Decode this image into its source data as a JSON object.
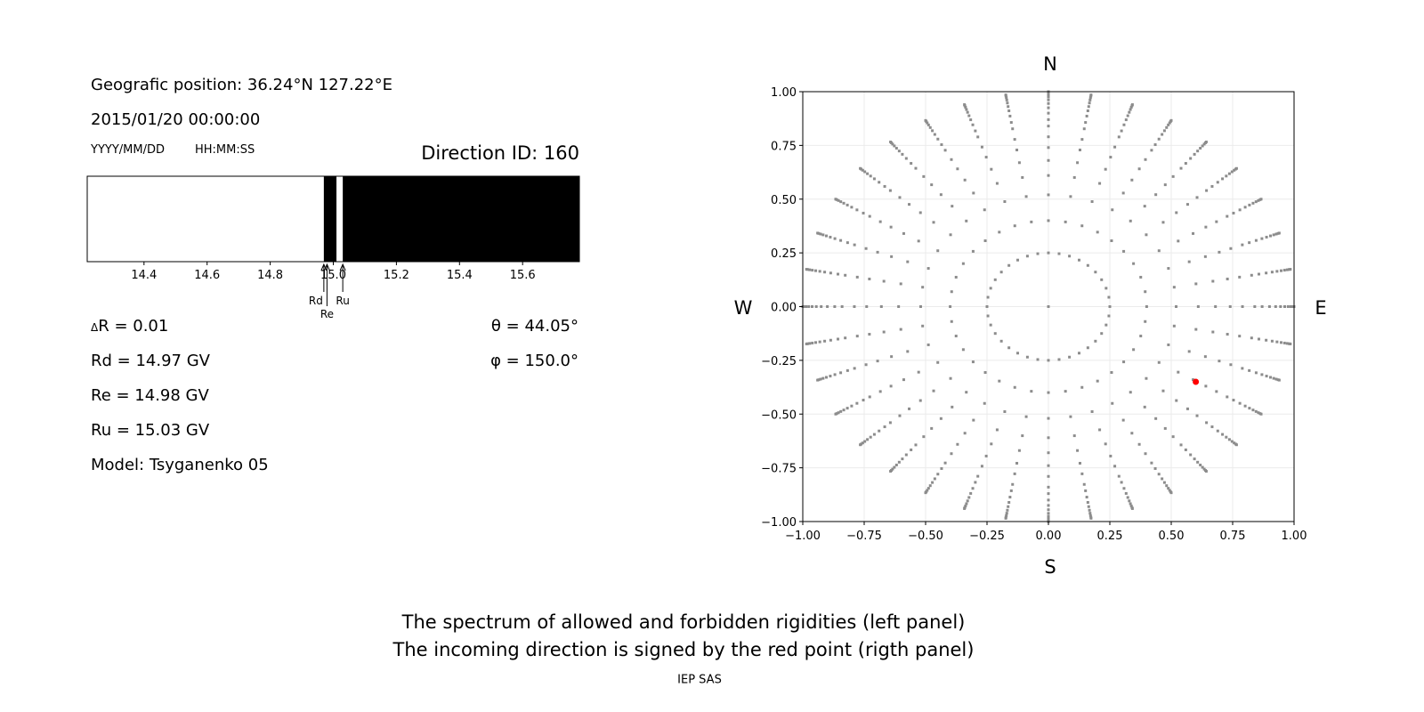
{
  "info": {
    "geo_position": "Geografic position: 36.24°N 127.22°E",
    "datetime": "2015/01/20 00:00:00",
    "date_format": "YYYY/MM/DD",
    "time_format": "HH:MM:SS",
    "direction_id": "Direction ID: 160",
    "delta_r_symbol": "Δ",
    "delta_r": "R = 0.01",
    "rd": "Rd = 14.97 GV",
    "re": "Re = 14.98 GV",
    "ru": "Ru = 15.03 GV",
    "model": "Model: Tsyganenko 05",
    "theta": "θ = 44.05°",
    "phi": "φ = 150.0°"
  },
  "compass": {
    "n": "N",
    "s": "S",
    "w": "W",
    "e": "E"
  },
  "caption": {
    "line1": "The spectrum of allowed and forbidden rigidities (left panel)",
    "line2": "The incoming direction is signed by the red point (rigth panel)",
    "credit": "IEP SAS"
  },
  "chart_data": [
    {
      "type": "bar",
      "description_of_marks": "rigidity spectrum; black = forbidden, white = allowed",
      "xlim": [
        14.22,
        15.78
      ],
      "xticks": [
        "14.4",
        "14.6",
        "14.8",
        "15.0",
        "15.2",
        "15.4",
        "15.6"
      ],
      "forbidden_intervals": [
        [
          14.97,
          15.01
        ],
        [
          15.03,
          15.78
        ]
      ],
      "annotations": [
        {
          "label": "Rd",
          "value": 14.97
        },
        {
          "label": "Re",
          "value": 14.98
        },
        {
          "label": "Ru",
          "value": 15.03
        }
      ],
      "colors": {
        "forbidden": "#000000",
        "allowed": "#ffffff"
      }
    },
    {
      "type": "scatter",
      "xlim": [
        -1,
        1
      ],
      "ylim": [
        -1,
        1
      ],
      "xticks": [
        "−1.00",
        "−0.75",
        "−0.50",
        "−0.25",
        "0.00",
        "0.25",
        "0.50",
        "0.75",
        "1.00"
      ],
      "yticks": [
        "−1.00",
        "−0.75",
        "−0.50",
        "−0.25",
        "0.00",
        "0.25",
        "0.50",
        "0.75",
        "1.00"
      ],
      "grid": true,
      "directions": {
        "azimuth_step_deg": 10,
        "radii": [
          0.25,
          0.4,
          0.52,
          0.61,
          0.68,
          0.74,
          0.79,
          0.84,
          0.87,
          0.9,
          0.925,
          0.945,
          0.962,
          0.976,
          0.987,
          0.995,
          1.0
        ],
        "center": [
          0,
          0
        ],
        "color": "#8c8c8c"
      },
      "incoming_direction": {
        "x": 0.6,
        "y": -0.35,
        "color": "#ff0000"
      }
    }
  ]
}
